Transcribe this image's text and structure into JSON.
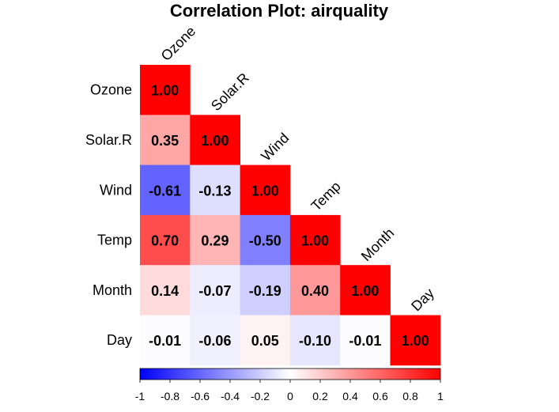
{
  "chart_data": {
    "type": "heatmap",
    "title": "Correlation Plot: airquality",
    "variables": [
      "Ozone",
      "Solar.R",
      "Wind",
      "Temp",
      "Month",
      "Day"
    ],
    "matrix": [
      [
        1.0
      ],
      [
        0.35,
        1.0
      ],
      [
        -0.61,
        -0.13,
        1.0
      ],
      [
        0.7,
        0.29,
        -0.5,
        1.0
      ],
      [
        0.14,
        -0.07,
        -0.19,
        0.4,
        1.0
      ],
      [
        -0.01,
        -0.06,
        0.05,
        -0.1,
        -0.01,
        1.0
      ]
    ],
    "value_labels": [
      [
        "1.00"
      ],
      [
        "0.35",
        "1.00"
      ],
      [
        "-0.61",
        "-0.13",
        "1.00"
      ],
      [
        "0.70",
        "0.29",
        "-0.50",
        "1.00"
      ],
      [
        "0.14",
        "-0.07",
        "-0.19",
        "0.40",
        "1.00"
      ],
      [
        "-0.01",
        "-0.06",
        "0.05",
        "-0.10",
        "-0.01",
        "1.00"
      ]
    ],
    "triangle": "lower",
    "color_scale": {
      "low": "#0000ff",
      "mid": "#ffffff",
      "high": "#ff0000",
      "range": [
        -1,
        1
      ]
    },
    "colorbar_ticks": [
      "-1",
      "-0.8",
      "-0.6",
      "-0.4",
      "-0.2",
      "0",
      "0.2",
      "0.4",
      "0.6",
      "0.8",
      "1"
    ],
    "colorbar_position": "bottom"
  }
}
